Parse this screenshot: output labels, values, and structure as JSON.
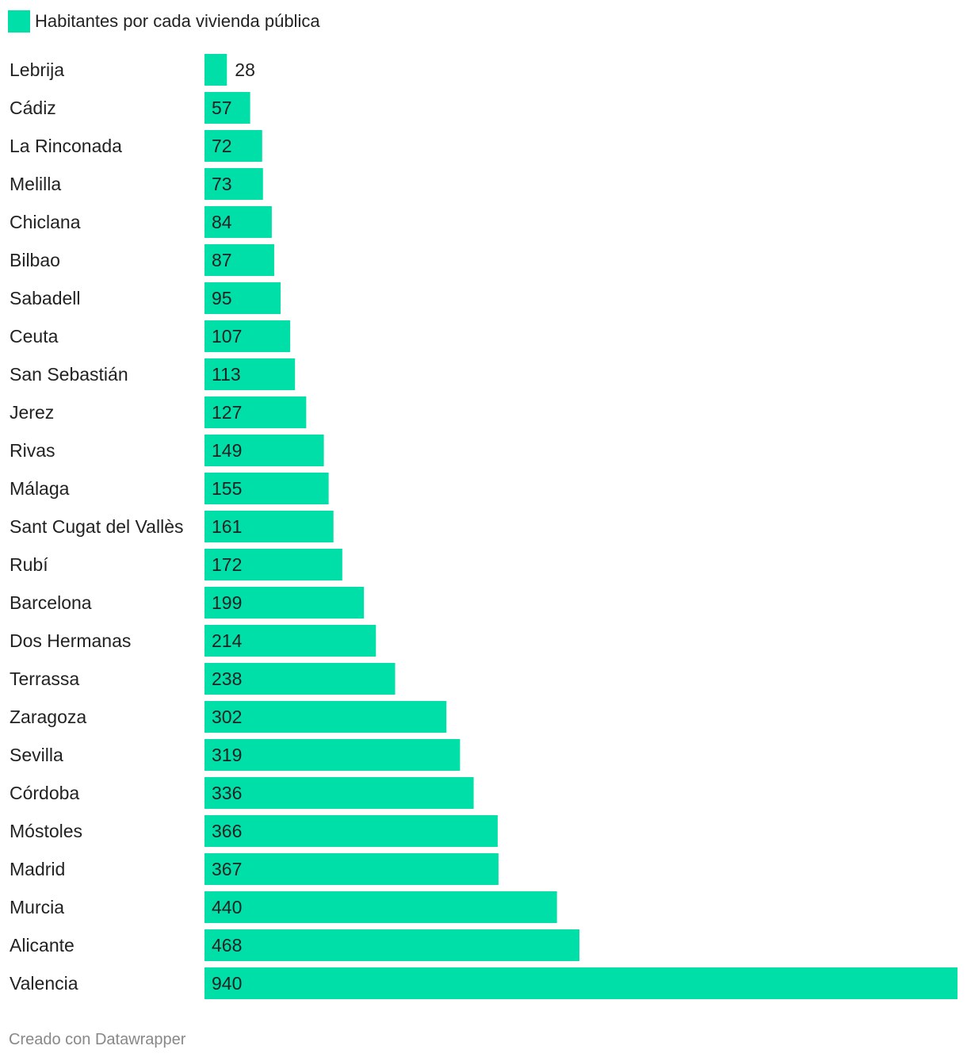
{
  "legend": {
    "label": "Habitantes por cada vivienda pública",
    "color": "#00dfa8"
  },
  "footer": {
    "credit": "Creado con Datawrapper"
  },
  "chart_data": {
    "type": "bar",
    "orientation": "horizontal",
    "categories": [
      "Lebrija",
      "Cádiz",
      "La Rinconada",
      "Melilla",
      "Chiclana",
      "Bilbao",
      "Sabadell",
      "Ceuta",
      "San Sebastián",
      "Jerez",
      "Rivas",
      "Málaga",
      "Sant Cugat del Vallès",
      "Rubí",
      "Barcelona",
      "Dos Hermanas",
      "Terrassa",
      "Zaragoza",
      "Sevilla",
      "Córdoba",
      "Móstoles",
      "Madrid",
      "Murcia",
      "Alicante",
      "Valencia"
    ],
    "series": [
      {
        "name": "Habitantes por cada vivienda pública",
        "values": [
          28,
          57,
          72,
          73,
          84,
          87,
          95,
          107,
          113,
          127,
          149,
          155,
          161,
          172,
          199,
          214,
          238,
          302,
          319,
          336,
          366,
          367,
          440,
          468,
          940
        ],
        "color": "#00dfa8"
      }
    ],
    "value_labels": [
      "28",
      "57",
      "72",
      "73",
      "84",
      "87",
      "95",
      "107",
      "113",
      "127",
      "149",
      "155",
      "161",
      "172",
      "199",
      "214",
      "238",
      "302",
      "319",
      "336",
      "366",
      "367",
      "440",
      "468",
      "940"
    ],
    "xlim": [
      0,
      940
    ],
    "grid": false,
    "legend_position": "top-left"
  }
}
